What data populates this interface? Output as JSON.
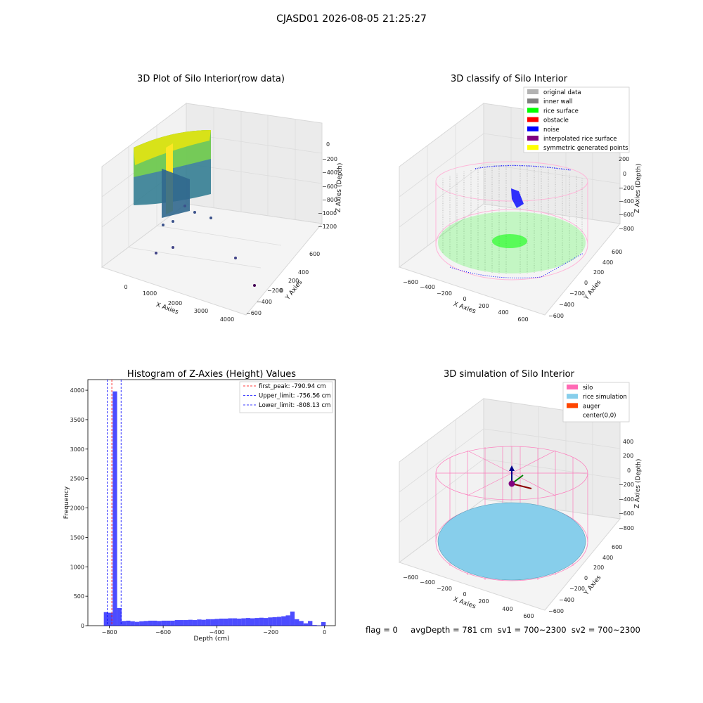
{
  "figure": {
    "suptitle": "CJASD01 2026-08-05 21:25:27"
  },
  "panels": {
    "raw": {
      "title": "3D Plot of Silo Interior(row data)",
      "xlabel": "X Axies",
      "ylabel": "Y Axies",
      "zlabel": "Z Axies (Depth)",
      "xticks": [
        "0",
        "1000",
        "2000",
        "3000",
        "4000"
      ],
      "yticks": [
        "600",
        "400",
        "200",
        "0",
        "−200",
        "−400",
        "−600"
      ],
      "zticks": [
        "0",
        "−200",
        "−400",
        "−600",
        "−800",
        "−1000",
        "−1200"
      ],
      "colormap": [
        "#fde725",
        "#5ec962",
        "#21918c",
        "#3b528b",
        "#440154"
      ]
    },
    "classify": {
      "title": "3D classify of Silo Interior",
      "xlabel": "X Axies",
      "ylabel": "Y Axies",
      "zlabel": "Z Axies (Depth)",
      "xticks": [
        "−600",
        "−400",
        "−200",
        "0",
        "200",
        "400",
        "600"
      ],
      "yticks": [
        "600",
        "400",
        "200",
        "0",
        "−200",
        "−400",
        "−600"
      ],
      "zticks": [
        "200",
        "0",
        "−200",
        "−400",
        "−600",
        "−800"
      ],
      "legend": [
        {
          "label": "original data",
          "color": "#b3b3b3"
        },
        {
          "label": "inner wall",
          "color": "#808080"
        },
        {
          "label": "rice surface",
          "color": "#00ff00"
        },
        {
          "label": "obstacle",
          "color": "#ff0000"
        },
        {
          "label": "noise",
          "color": "#0000ff"
        },
        {
          "label": "interpolated rice surface",
          "color": "#800080"
        },
        {
          "label": "symmetric generated points",
          "color": "#ffff00"
        }
      ]
    },
    "simulation": {
      "title": "3D simulation of Silo Interior",
      "xlabel": "X Axies",
      "ylabel": "Y Axies",
      "zlabel": "Z Axies (Depth)",
      "xticks": [
        "−600",
        "−400",
        "−200",
        "0",
        "200",
        "400",
        "600"
      ],
      "yticks": [
        "600",
        "400",
        "200",
        "0",
        "−200",
        "−400",
        "−600"
      ],
      "zticks": [
        "400",
        "200",
        "0",
        "−200",
        "−400",
        "−600",
        "−800"
      ],
      "legend": [
        {
          "label": "silo",
          "color": "#ff69b4"
        },
        {
          "label": "rice simulation",
          "color": "#87ceeb"
        },
        {
          "label": "auger",
          "color": "#ff4500"
        },
        {
          "label": "center(0,0)",
          "color": "#ffffff"
        }
      ]
    }
  },
  "chart_data": {
    "type": "bar",
    "title": "Histogram of Z-Axies (Height) Values",
    "xlabel": "Depth (cm)",
    "ylabel": "Frequency",
    "xlim": [
      -880,
      40
    ],
    "ylim": [
      0,
      4180
    ],
    "xticks": [
      -800,
      -600,
      -400,
      -200,
      0
    ],
    "yticks": [
      0,
      500,
      1000,
      1500,
      2000,
      2500,
      3000,
      3500,
      4000
    ],
    "bar_color": "#0000ff",
    "bin_width": 16.5,
    "bins": [
      {
        "x": -812.5,
        "y": 230
      },
      {
        "x": -796,
        "y": 220
      },
      {
        "x": -779.5,
        "y": 3980
      },
      {
        "x": -763,
        "y": 300
      },
      {
        "x": -746.5,
        "y": 80
      },
      {
        "x": -730,
        "y": 85
      },
      {
        "x": -713.5,
        "y": 75
      },
      {
        "x": -697,
        "y": 65
      },
      {
        "x": -680.5,
        "y": 75
      },
      {
        "x": -664,
        "y": 80
      },
      {
        "x": -647.5,
        "y": 85
      },
      {
        "x": -631,
        "y": 85
      },
      {
        "x": -614.5,
        "y": 80
      },
      {
        "x": -598,
        "y": 85
      },
      {
        "x": -581.5,
        "y": 85
      },
      {
        "x": -565,
        "y": 85
      },
      {
        "x": -548.5,
        "y": 95
      },
      {
        "x": -532,
        "y": 95
      },
      {
        "x": -515.5,
        "y": 95
      },
      {
        "x": -499,
        "y": 100
      },
      {
        "x": -482.5,
        "y": 95
      },
      {
        "x": -466,
        "y": 105
      },
      {
        "x": -449.5,
        "y": 100
      },
      {
        "x": -433,
        "y": 110
      },
      {
        "x": -416.5,
        "y": 110
      },
      {
        "x": -400,
        "y": 115
      },
      {
        "x": -383.5,
        "y": 120
      },
      {
        "x": -367,
        "y": 120
      },
      {
        "x": -350.5,
        "y": 125
      },
      {
        "x": -334,
        "y": 125
      },
      {
        "x": -317.5,
        "y": 120
      },
      {
        "x": -301,
        "y": 125
      },
      {
        "x": -284.5,
        "y": 130
      },
      {
        "x": -268,
        "y": 125
      },
      {
        "x": -251.5,
        "y": 130
      },
      {
        "x": -235,
        "y": 135
      },
      {
        "x": -218.5,
        "y": 130
      },
      {
        "x": -202,
        "y": 140
      },
      {
        "x": -185.5,
        "y": 145
      },
      {
        "x": -169,
        "y": 150
      },
      {
        "x": -152.5,
        "y": 160
      },
      {
        "x": -136,
        "y": 175
      },
      {
        "x": -119.5,
        "y": 240
      },
      {
        "x": -103,
        "y": 110
      },
      {
        "x": -86.5,
        "y": 80
      },
      {
        "x": -70,
        "y": 40
      },
      {
        "x": -53.5,
        "y": 80
      },
      {
        "x": -37,
        "y": 10
      },
      {
        "x": -20.5,
        "y": 5
      },
      {
        "x": -4,
        "y": 60
      }
    ],
    "vlines": [
      {
        "value": -790.94,
        "color": "#ff0000",
        "label": "first_peak: -790.94 cm"
      },
      {
        "value": -756.56,
        "color": "#0000ff",
        "label": "Upper_limit: -756.56 cm"
      },
      {
        "value": -808.13,
        "color": "#0000ff",
        "label": "Lower_limit: -808.13 cm"
      }
    ]
  },
  "footer": {
    "flag": "flag = 0",
    "stats": "avgDepth = 781 cm  sv1 = 700~2300  sv2 = 700~2300"
  }
}
